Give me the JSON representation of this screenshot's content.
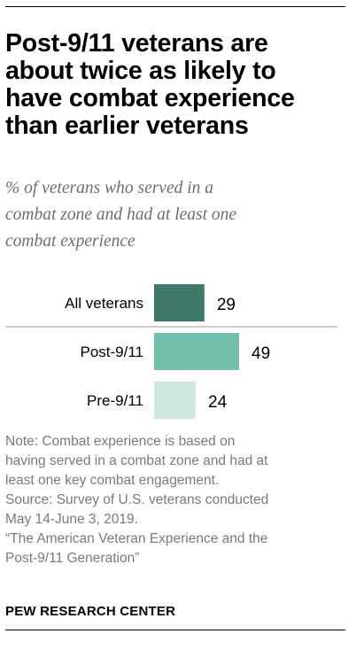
{
  "title_lines": [
    "Post-9/11 veterans are",
    "about twice as likely to",
    "have combat experience",
    "than earlier veterans"
  ],
  "subtitle_lines": [
    "% of veterans who served in a",
    "combat zone and had at least one",
    "combat experience"
  ],
  "chart_data": {
    "type": "bar",
    "orientation": "horizontal",
    "categories": [
      "All veterans",
      "Post-9/11",
      "Pre-9/11"
    ],
    "values": [
      29,
      49,
      24
    ],
    "colors": [
      "#3d7a6b",
      "#74c0ad",
      "#cde8e1"
    ],
    "separator_color": "#9e9e9e",
    "xlim": [
      0,
      100
    ]
  },
  "notes": [
    "Note: Combat experience is based on",
    "having served in a combat zone and had at",
    "least one key combat engagement.",
    "Source: Survey of U.S. veterans conducted",
    "May 14-June 3, 2019.",
    "“The American Veteran Experience and the",
    "Post-9/11 Generation”"
  ],
  "brand": "PEW RESEARCH CENTER"
}
